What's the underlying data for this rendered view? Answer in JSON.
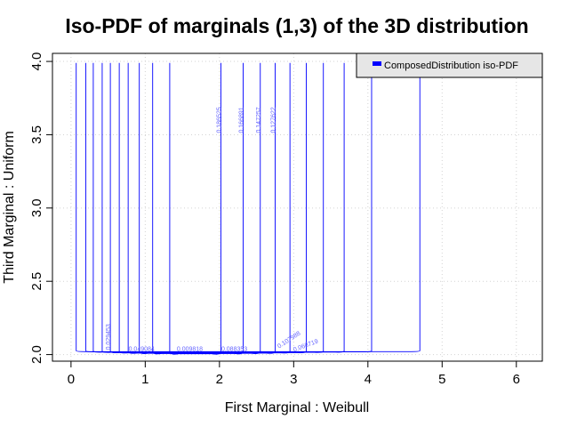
{
  "chart_data": {
    "type": "contour",
    "title": "Iso-PDF of marginals (1,3) of the 3D distribution",
    "xlabel": "First Marginal : Weibull",
    "ylabel": "Third Marginal : Uniform",
    "xlim": [
      -0.25,
      6.35
    ],
    "ylim": [
      1.955,
      4.055
    ],
    "xticks": [
      0,
      1,
      2,
      3,
      4,
      5,
      6
    ],
    "yticks": [
      2.0,
      2.5,
      3.0,
      3.5,
      4.0
    ],
    "xtick_labels": [
      "0",
      "1",
      "2",
      "3",
      "4",
      "5",
      "6"
    ],
    "ytick_labels": [
      "2.0",
      "2.5",
      "3.0",
      "3.5",
      "4.0"
    ],
    "grid": true,
    "legend_position": "top-right",
    "series": [
      {
        "name": "ComposedDistribution iso-PDF",
        "color": "#0000ff"
      }
    ],
    "contour_y_bottom": 2.02,
    "contour_y_top": 3.99,
    "contours": [
      {
        "x_left": 0.07,
        "x_right": 4.7
      },
      {
        "x_left": 0.2,
        "x_right": 4.05
      },
      {
        "x_left": 0.3,
        "x_right": 3.68
      },
      {
        "x_left": 0.42,
        "x_right": 3.4
      },
      {
        "x_left": 0.53,
        "x_right": 3.17
      },
      {
        "x_left": 0.65,
        "x_right": 2.95
      },
      {
        "x_left": 0.77,
        "x_right": 2.75
      },
      {
        "x_left": 0.92,
        "x_right": 2.55
      },
      {
        "x_left": 1.1,
        "x_right": 2.32
      },
      {
        "x_left": 1.33,
        "x_right": 2.02
      }
    ],
    "level_labels": [
      {
        "text": "0.186525",
        "x": 2.02,
        "y": 3.6,
        "rotate": -90
      },
      {
        "text": "0.166891",
        "x": 2.32,
        "y": 3.6,
        "rotate": -90
      },
      {
        "text": "0.147257",
        "x": 2.55,
        "y": 3.6,
        "rotate": -90
      },
      {
        "text": "0.127622",
        "x": 2.75,
        "y": 3.6,
        "rotate": -90
      },
      {
        "text": "0.029453",
        "x": 0.53,
        "y": 2.12,
        "rotate": -90
      },
      {
        "text": "0.107988",
        "x": 2.95,
        "y": 2.09,
        "rotate": -33
      },
      {
        "text": "0.068719",
        "x": 3.17,
        "y": 2.05,
        "rotate": -20
      },
      {
        "text": "0.049084",
        "x": 0.95,
        "y": 2.025,
        "rotate": 0
      },
      {
        "text": "0.009818",
        "x": 1.6,
        "y": 2.025,
        "rotate": 0
      },
      {
        "text": "0.088353",
        "x": 2.2,
        "y": 2.025,
        "rotate": 0
      }
    ]
  }
}
